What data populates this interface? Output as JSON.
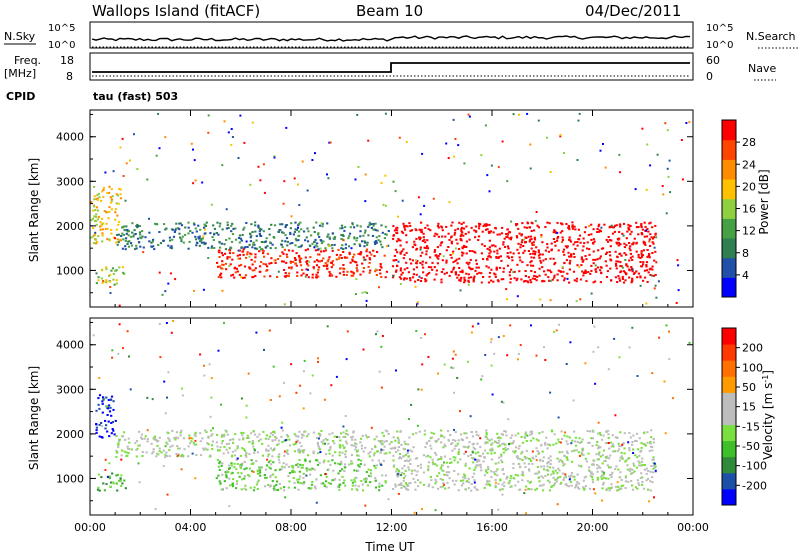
{
  "header": {
    "station": "Wallops Island (fitACF)",
    "beam": "Beam 10",
    "date": "04/Dec/2011"
  },
  "noise_panel": {
    "left_label": "N.Sky",
    "right_label": "N.Search",
    "left_ticks": [
      "10^5",
      "10^0"
    ],
    "right_ticks": [
      "10^5",
      "10^0"
    ]
  },
  "freq_panel": {
    "left_label_top": "Freq.",
    "left_label_bottom": "[MHz]",
    "right_label": "Nave",
    "left_ticks": [
      "18",
      "8"
    ],
    "right_ticks": [
      "60",
      "0"
    ],
    "cpid_label": "CPID",
    "cpid_value": "tau (fast) 503"
  },
  "colors": {
    "power": [
      "#0000ff",
      "#2050a8",
      "#2f7f50",
      "#46a046",
      "#8fd040",
      "#ffc000",
      "#ff8c00",
      "#ff4400",
      "#ff0000"
    ],
    "velocity": [
      "#0000ff",
      "#1c4fa8",
      "#2f8a3a",
      "#3fbf2a",
      "#7ae040",
      "#bdbdbd",
      "#bdbdbd",
      "#ff9a00",
      "#ff7000",
      "#ff3a00",
      "#ff0000"
    ]
  },
  "chart_data": [
    {
      "type": "heatmap",
      "id": "power",
      "ylabel": "Slant Range [km]",
      "ylim": [
        180,
        4600
      ],
      "yticks": [
        "4000",
        "3000",
        "2000",
        "1000"
      ],
      "xlim": [
        0,
        24
      ],
      "xticks": [
        "00:00",
        "04:00",
        "08:00",
        "12:00",
        "16:00",
        "20:00",
        "00:00"
      ],
      "colorbar": {
        "label": "Power [dB]",
        "ticks": [
          "28",
          "24",
          "20",
          "16",
          "12",
          "8",
          "4"
        ]
      },
      "regions": [
        {
          "t": [
            5.0,
            11.8
          ],
          "r": [
            850,
            1500
          ],
          "level": 8
        },
        {
          "t": [
            12.0,
            22.5
          ],
          "r": [
            750,
            2100
          ],
          "level": 9
        },
        {
          "t": [
            0.0,
            1.2
          ],
          "r": [
            1600,
            2900
          ],
          "level": 5
        },
        {
          "t": [
            1.0,
            12.0
          ],
          "r": [
            1500,
            2100
          ],
          "level": 2
        },
        {
          "t": [
            0.2,
            1.4
          ],
          "r": [
            700,
            1100
          ],
          "level": 4
        }
      ]
    },
    {
      "type": "heatmap",
      "id": "velocity",
      "ylabel": "Slant Range [km]",
      "ylim": [
        180,
        4600
      ],
      "yticks": [
        "4000",
        "3000",
        "2000",
        "1000"
      ],
      "xlim": [
        0,
        24
      ],
      "xticks": [
        "00:00",
        "04:00",
        "08:00",
        "12:00",
        "16:00",
        "20:00",
        "00:00"
      ],
      "xlabel": "Time UT",
      "colorbar": {
        "label": "Velocity [m s-1]",
        "ticks": [
          "200",
          "100",
          "50",
          "15",
          "-15",
          "-50",
          "-100",
          "-200"
        ]
      },
      "regions": [
        {
          "t": [
            5.0,
            11.8
          ],
          "r": [
            750,
            1450
          ],
          "level": 4
        },
        {
          "t": [
            12.0,
            22.5
          ],
          "r": [
            750,
            2100
          ],
          "level": 5
        },
        {
          "t": [
            0.2,
            1.0
          ],
          "r": [
            1900,
            2900
          ],
          "level": 0
        },
        {
          "t": [
            0.2,
            1.4
          ],
          "r": [
            750,
            1150
          ],
          "level": 3
        },
        {
          "t": [
            1.0,
            12.0
          ],
          "r": [
            1500,
            2100
          ],
          "level": 5
        }
      ]
    }
  ]
}
